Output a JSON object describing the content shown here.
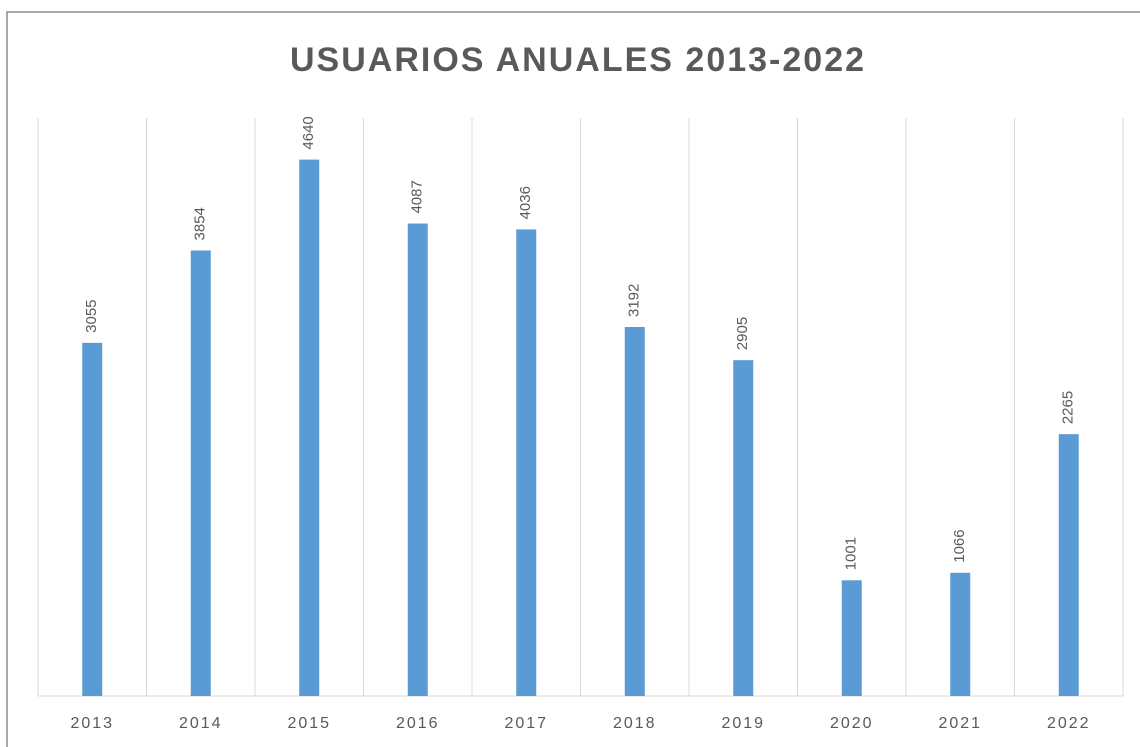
{
  "chart_data": {
    "type": "bar",
    "title": "USUARIOS ANUALES 2013-2022",
    "categories": [
      "2013",
      "2014",
      "2015",
      "2016",
      "2017",
      "2018",
      "2019",
      "2020",
      "2021",
      "2022"
    ],
    "values": [
      3055,
      3854,
      4640,
      4087,
      4036,
      3192,
      2905,
      1001,
      1066,
      2265
    ],
    "color": "#5b9bd5",
    "ylim": [
      0,
      5000
    ],
    "grid": true
  }
}
